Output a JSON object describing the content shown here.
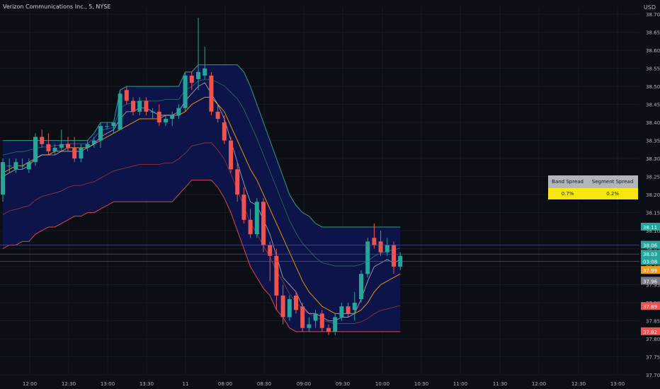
{
  "header": {
    "symbol_label": "Verizon Communications Inc., 5, NYSE",
    "currency": "USD"
  },
  "spread_table": {
    "headers": [
      "Band Spread",
      "Segment Spread"
    ],
    "values": [
      "0.7%",
      "0.2%"
    ]
  },
  "colors": {
    "background": "#0c0e15",
    "up": "#26a69a",
    "down": "#ef5350",
    "band_fill": "#0d1552",
    "outer_upper": "#2e9e7a",
    "outer_lower": "#e0463f",
    "mid_upper": "#2e7d60",
    "mid_lower": "#b33a3a",
    "center": "#e59400",
    "fast": "#d7d7d7"
  },
  "chart_data": {
    "type": "candlestick",
    "ylim": [
      37.7,
      38.72
    ],
    "yticks": [
      "37.70",
      "37.75",
      "37.80",
      "37.85",
      "37.90",
      "37.95",
      "38.00",
      "38.05",
      "38.10",
      "38.15",
      "38.20",
      "38.25",
      "38.30",
      "38.35",
      "38.40",
      "38.45",
      "38.50",
      "38.55",
      "38.60",
      "38.65",
      "38.70"
    ],
    "xticks": [
      "12:00",
      "12:30",
      "13:00",
      "13:30",
      "11",
      "08:00",
      "08:30",
      "09:00",
      "09:30",
      "10:00",
      "10:30",
      "11:00",
      "11:30",
      "12:00",
      "12:30",
      "13:00"
    ],
    "price_tags": [
      {
        "label": "38.11",
        "value": 38.11,
        "color": "#26a69a"
      },
      {
        "label": "38.06",
        "value": 38.06,
        "color": "#26a69a"
      },
      {
        "label": "38.03",
        "value": 38.035,
        "color": "#26a69a"
      },
      {
        "label": "03:08",
        "value": 38.015,
        "color": "#26a69a"
      },
      {
        "label": "37.99",
        "value": 37.99,
        "color": "#f39c12"
      },
      {
        "label": "37.96",
        "value": 37.96,
        "color": "#787b86"
      },
      {
        "label": "37.89",
        "value": 37.89,
        "color": "#ef5350"
      },
      {
        "label": "37.82",
        "value": 37.82,
        "color": "#ef5350"
      }
    ],
    "candles": [
      {
        "o": 38.2,
        "h": 38.3,
        "l": 38.18,
        "c": 38.29
      },
      {
        "o": 38.28,
        "h": 38.3,
        "l": 38.26,
        "c": 38.28
      },
      {
        "o": 38.27,
        "h": 38.3,
        "l": 38.26,
        "c": 38.29
      },
      {
        "o": 38.28,
        "h": 38.3,
        "l": 38.27,
        "c": 38.28
      },
      {
        "o": 38.27,
        "h": 38.3,
        "l": 38.26,
        "c": 38.29
      },
      {
        "o": 38.29,
        "h": 38.37,
        "l": 38.28,
        "c": 38.36
      },
      {
        "o": 38.36,
        "h": 38.38,
        "l": 38.33,
        "c": 38.34
      },
      {
        "o": 38.34,
        "h": 38.37,
        "l": 38.31,
        "c": 38.32
      },
      {
        "o": 38.32,
        "h": 38.34,
        "l": 38.31,
        "c": 38.33
      },
      {
        "o": 38.33,
        "h": 38.38,
        "l": 38.32,
        "c": 38.34
      },
      {
        "o": 38.34,
        "h": 38.36,
        "l": 38.32,
        "c": 38.33
      },
      {
        "o": 38.33,
        "h": 38.36,
        "l": 38.29,
        "c": 38.3
      },
      {
        "o": 38.3,
        "h": 38.34,
        "l": 38.29,
        "c": 38.33
      },
      {
        "o": 38.33,
        "h": 38.35,
        "l": 38.32,
        "c": 38.34
      },
      {
        "o": 38.34,
        "h": 38.36,
        "l": 38.33,
        "c": 38.35
      },
      {
        "o": 38.35,
        "h": 38.4,
        "l": 38.33,
        "c": 38.39
      },
      {
        "o": 38.39,
        "h": 38.4,
        "l": 38.38,
        "c": 38.39
      },
      {
        "o": 38.39,
        "h": 38.4,
        "l": 38.37,
        "c": 38.4
      },
      {
        "o": 38.38,
        "h": 38.49,
        "l": 38.38,
        "c": 38.48
      },
      {
        "o": 38.49,
        "h": 38.5,
        "l": 38.45,
        "c": 38.46
      },
      {
        "o": 38.46,
        "h": 38.47,
        "l": 38.42,
        "c": 38.43
      },
      {
        "o": 38.43,
        "h": 38.47,
        "l": 38.42,
        "c": 38.46
      },
      {
        "o": 38.46,
        "h": 38.47,
        "l": 38.42,
        "c": 38.43
      },
      {
        "o": 38.43,
        "h": 38.44,
        "l": 38.41,
        "c": 38.43
      },
      {
        "o": 38.43,
        "h": 38.45,
        "l": 38.39,
        "c": 38.4
      },
      {
        "o": 38.4,
        "h": 38.42,
        "l": 38.39,
        "c": 38.41
      },
      {
        "o": 38.41,
        "h": 38.43,
        "l": 38.39,
        "c": 38.42
      },
      {
        "o": 38.42,
        "h": 38.45,
        "l": 38.41,
        "c": 38.44
      },
      {
        "o": 38.44,
        "h": 38.54,
        "l": 38.43,
        "c": 38.53
      },
      {
        "o": 38.53,
        "h": 38.54,
        "l": 38.49,
        "c": 38.51
      },
      {
        "o": 38.52,
        "h": 38.69,
        "l": 38.49,
        "c": 38.54
      },
      {
        "o": 38.53,
        "h": 38.61,
        "l": 38.52,
        "c": 38.55
      },
      {
        "o": 38.53,
        "h": 38.54,
        "l": 38.42,
        "c": 38.43
      },
      {
        "o": 38.43,
        "h": 38.45,
        "l": 38.4,
        "c": 38.41
      },
      {
        "o": 38.4,
        "h": 38.42,
        "l": 38.34,
        "c": 38.35
      },
      {
        "o": 38.35,
        "h": 38.36,
        "l": 38.26,
        "c": 38.27
      },
      {
        "o": 38.27,
        "h": 38.29,
        "l": 38.18,
        "c": 38.2
      },
      {
        "o": 38.2,
        "h": 38.22,
        "l": 38.12,
        "c": 38.13
      },
      {
        "o": 38.13,
        "h": 38.16,
        "l": 38.08,
        "c": 38.09
      },
      {
        "o": 38.09,
        "h": 38.19,
        "l": 38.08,
        "c": 38.18
      },
      {
        "o": 38.18,
        "h": 38.19,
        "l": 38.04,
        "c": 38.06
      },
      {
        "o": 38.06,
        "h": 38.07,
        "l": 37.96,
        "c": 38.03
      },
      {
        "o": 38.03,
        "h": 38.05,
        "l": 37.88,
        "c": 37.92
      },
      {
        "o": 37.92,
        "h": 37.95,
        "l": 37.84,
        "c": 37.86
      },
      {
        "o": 37.86,
        "h": 37.92,
        "l": 37.85,
        "c": 37.91
      },
      {
        "o": 37.92,
        "h": 37.93,
        "l": 37.87,
        "c": 37.88
      },
      {
        "o": 37.89,
        "h": 37.9,
        "l": 37.82,
        "c": 37.83
      },
      {
        "o": 37.83,
        "h": 37.86,
        "l": 37.82,
        "c": 37.84
      },
      {
        "o": 37.85,
        "h": 37.88,
        "l": 37.83,
        "c": 37.87
      },
      {
        "o": 37.87,
        "h": 37.88,
        "l": 37.82,
        "c": 37.83
      },
      {
        "o": 37.83,
        "h": 37.84,
        "l": 37.81,
        "c": 37.82
      },
      {
        "o": 37.82,
        "h": 37.87,
        "l": 37.81,
        "c": 37.86
      },
      {
        "o": 37.86,
        "h": 37.9,
        "l": 37.85,
        "c": 37.89
      },
      {
        "o": 37.89,
        "h": 37.9,
        "l": 37.86,
        "c": 37.87
      },
      {
        "o": 37.88,
        "h": 37.93,
        "l": 37.85,
        "c": 37.9
      },
      {
        "o": 37.91,
        "h": 37.99,
        "l": 37.9,
        "c": 37.98
      },
      {
        "o": 37.98,
        "h": 38.08,
        "l": 37.97,
        "c": 38.07
      },
      {
        "o": 38.08,
        "h": 38.12,
        "l": 38.05,
        "c": 38.06
      },
      {
        "o": 38.07,
        "h": 38.1,
        "l": 38.03,
        "c": 38.04
      },
      {
        "o": 38.04,
        "h": 38.08,
        "l": 38.03,
        "c": 38.06
      },
      {
        "o": 38.06,
        "h": 38.07,
        "l": 37.98,
        "c": 38.0
      },
      {
        "o": 38.0,
        "h": 38.04,
        "l": 37.99,
        "c": 38.03
      }
    ],
    "ema_center": [
      38.26,
      38.27,
      38.28,
      38.28,
      38.29,
      38.3,
      38.31,
      38.31,
      38.32,
      38.32,
      38.33,
      38.33,
      38.33,
      38.33,
      38.34,
      38.35,
      38.36,
      38.37,
      38.38,
      38.39,
      38.4,
      38.41,
      38.41,
      38.41,
      38.41,
      38.42,
      38.42,
      38.42,
      38.43,
      38.45,
      38.46,
      38.47,
      38.47,
      38.45,
      38.43,
      38.39,
      38.35,
      38.31,
      38.27,
      38.24,
      38.2,
      38.16,
      38.12,
      38.08,
      38.04,
      38.0,
      37.96,
      37.93,
      37.91,
      37.89,
      37.88,
      37.87,
      37.87,
      37.87,
      37.87,
      37.88,
      37.9,
      37.93,
      37.95,
      37.96,
      37.97,
      37.98
    ],
    "ema_fast": [
      38.25,
      38.26,
      38.27,
      38.27,
      38.28,
      38.3,
      38.31,
      38.31,
      38.31,
      38.32,
      38.32,
      38.32,
      38.32,
      38.33,
      38.34,
      38.36,
      38.37,
      38.38,
      38.41,
      38.43,
      38.43,
      38.44,
      38.44,
      38.43,
      38.42,
      38.42,
      38.42,
      38.43,
      38.46,
      38.48,
      38.5,
      38.51,
      38.48,
      38.45,
      38.41,
      38.35,
      38.29,
      38.23,
      38.18,
      38.17,
      38.13,
      38.09,
      38.03,
      37.97,
      37.95,
      37.93,
      37.89,
      37.87,
      37.87,
      37.86,
      37.85,
      37.85,
      37.86,
      37.86,
      37.87,
      37.91,
      37.96,
      38.0,
      38.01,
      38.02,
      38.01,
      38.02
    ],
    "band_upper": [
      38.35,
      38.35,
      38.35,
      38.35,
      38.35,
      38.35,
      38.35,
      38.35,
      38.35,
      38.35,
      38.35,
      38.35,
      38.35,
      38.35,
      38.37,
      38.4,
      38.4,
      38.4,
      38.49,
      38.5,
      38.5,
      38.5,
      38.5,
      38.5,
      38.5,
      38.5,
      38.5,
      38.5,
      38.54,
      38.54,
      38.56,
      38.56,
      38.56,
      38.56,
      38.56,
      38.56,
      38.56,
      38.54,
      38.5,
      38.45,
      38.4,
      38.35,
      38.3,
      38.25,
      38.2,
      38.17,
      38.15,
      38.14,
      38.12,
      38.11,
      38.11,
      38.11,
      38.11,
      38.11,
      38.11,
      38.11,
      38.11,
      38.11,
      38.11,
      38.11,
      38.11,
      38.11
    ],
    "band_lower": [
      38.05,
      38.06,
      38.06,
      38.07,
      38.07,
      38.09,
      38.1,
      38.11,
      38.11,
      38.12,
      38.13,
      38.14,
      38.14,
      38.15,
      38.15,
      38.16,
      38.17,
      38.18,
      38.18,
      38.18,
      38.18,
      38.18,
      38.18,
      38.18,
      38.18,
      38.18,
      38.18,
      38.2,
      38.22,
      38.24,
      38.24,
      38.24,
      38.24,
      38.22,
      38.19,
      38.15,
      38.1,
      38.05,
      38.0,
      37.97,
      37.94,
      37.92,
      37.88,
      37.86,
      37.83,
      37.82,
      37.82,
      37.82,
      37.82,
      37.82,
      37.82,
      37.82,
      37.82,
      37.82,
      37.82,
      37.82,
      37.82,
      37.82,
      37.82,
      37.82,
      37.82,
      37.82
    ],
    "series": [
      {
        "name": "center line",
        "key": "ema_center"
      },
      {
        "name": "fast line",
        "key": "ema_fast"
      },
      {
        "name": "upper band",
        "key": "band_upper"
      },
      {
        "name": "lower band",
        "key": "band_lower"
      }
    ]
  }
}
